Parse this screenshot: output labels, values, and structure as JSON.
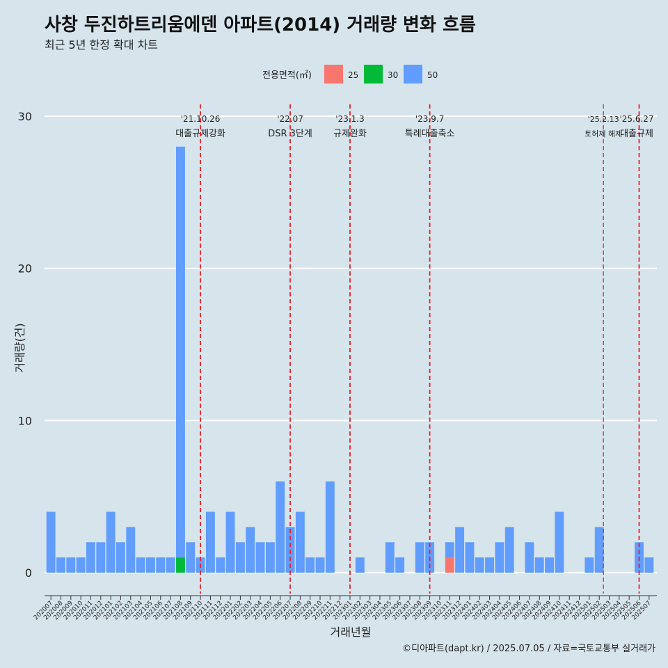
{
  "chart_data": {
    "type": "bar",
    "title": "사창 두진하트리움에덴 아파트(2014) 거래량 변화 흐름",
    "subtitle": "최근 5년 한정 확대 차트",
    "xlabel": "거래년월",
    "ylabel": "거래량(건)",
    "ylim": [
      0,
      30
    ],
    "yticks": [
      0,
      10,
      20,
      30
    ],
    "grid": true,
    "legend": {
      "title": "전용면적(㎡)",
      "position": "top"
    },
    "categories": [
      "202007",
      "202008",
      "202009",
      "202010",
      "202011",
      "202012",
      "202101",
      "202102",
      "202103",
      "202104",
      "202105",
      "202106",
      "202107",
      "202108",
      "202109",
      "202110",
      "202111",
      "202112",
      "202201",
      "202202",
      "202203",
      "202204",
      "202205",
      "202206",
      "202207",
      "202208",
      "202209",
      "202210",
      "202211",
      "202212",
      "202301",
      "202302",
      "202303",
      "202304",
      "202305",
      "202306",
      "202307",
      "202308",
      "202309",
      "202310",
      "202311",
      "202312",
      "202401",
      "202402",
      "202403",
      "202404",
      "202405",
      "202406",
      "202407",
      "202408",
      "202409",
      "202410",
      "202411",
      "202412",
      "202501",
      "202502",
      "202503",
      "202504",
      "202505",
      "202506",
      "202507"
    ],
    "series": [
      {
        "name": "25",
        "color": "#f8766d",
        "values": [
          0,
          0,
          0,
          0,
          0,
          0,
          0,
          0,
          0,
          0,
          0,
          0,
          0,
          0,
          0,
          0,
          0,
          0,
          0,
          0,
          0,
          0,
          0,
          0,
          0,
          0,
          0,
          0,
          0,
          0,
          0,
          0,
          0,
          0,
          0,
          0,
          0,
          0,
          0,
          0,
          1,
          0,
          0,
          0,
          0,
          0,
          0,
          0,
          0,
          0,
          0,
          0,
          0,
          0,
          0,
          0,
          0,
          0,
          0,
          0,
          0
        ]
      },
      {
        "name": "30",
        "color": "#00ba38",
        "values": [
          0,
          0,
          0,
          0,
          0,
          0,
          0,
          0,
          0,
          0,
          0,
          0,
          0,
          1,
          0,
          0,
          0,
          0,
          0,
          0,
          0,
          0,
          0,
          0,
          0,
          0,
          0,
          0,
          0,
          0,
          0,
          0,
          0,
          0,
          0,
          0,
          0,
          0,
          0,
          0,
          0,
          0,
          0,
          0,
          0,
          0,
          0,
          0,
          0,
          0,
          0,
          0,
          0,
          0,
          0,
          0,
          0,
          0,
          0,
          0,
          0
        ]
      },
      {
        "name": "50",
        "color": "#619cff",
        "values": [
          4,
          1,
          1,
          1,
          2,
          2,
          4,
          2,
          3,
          1,
          1,
          1,
          1,
          27,
          2,
          1,
          4,
          1,
          4,
          2,
          3,
          2,
          2,
          6,
          3,
          4,
          1,
          1,
          6,
          0,
          0,
          1,
          0,
          0,
          2,
          1,
          0,
          2,
          2,
          0,
          1,
          3,
          2,
          1,
          1,
          2,
          3,
          0,
          2,
          1,
          1,
          4,
          0,
          0,
          1,
          3,
          0,
          0,
          0,
          2,
          1
        ]
      }
    ],
    "events": [
      {
        "date": "'21.10.26",
        "name": "대출규제강화",
        "x": "202110"
      },
      {
        "date": "'22.07",
        "name": "DSR 3단계",
        "x": "202207"
      },
      {
        "date": "'23.1.3",
        "name": "규제완화",
        "x": "202301"
      },
      {
        "date": "'23.9.7",
        "name": "특례대출축소",
        "x": "202309"
      },
      {
        "date": "'25.2.13",
        "name": "토허제 해제",
        "x": "202502"
      },
      {
        "date": "'25.6.27",
        "name": "대출규제",
        "x": "202506"
      }
    ],
    "caption": "©디아파트(dapt.kr) / 2025.07.05 / 자료=국토교통부 실거래가"
  }
}
